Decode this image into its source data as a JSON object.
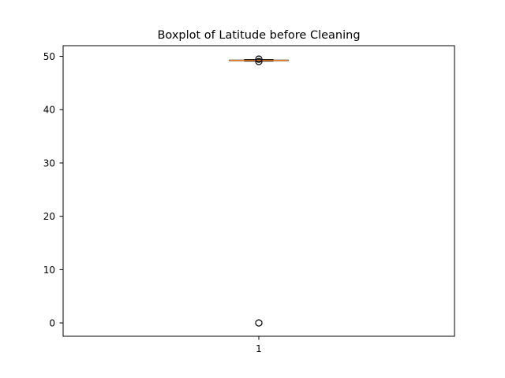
{
  "chart_data": {
    "type": "boxplot",
    "title": "Boxplot of Latitude before Cleaning",
    "xlabel": "",
    "ylabel": "",
    "categories": [
      "1"
    ],
    "boxes": [
      {
        "category": "1",
        "q1": 49.2,
        "median": 49.25,
        "q3": 49.3,
        "whisker_low": 49.1,
        "whisker_high": 49.4,
        "outliers": [
          0,
          0,
          0,
          49.0,
          49.05,
          49.45,
          49.5
        ]
      }
    ],
    "ylim": [
      -2.5,
      52
    ],
    "yticks": [
      0,
      10,
      20,
      30,
      40,
      50
    ],
    "grid": false,
    "colors": {
      "median": "#ff7f0e",
      "box": "#000000",
      "outlier": "#000000",
      "axis": "#000000"
    }
  }
}
